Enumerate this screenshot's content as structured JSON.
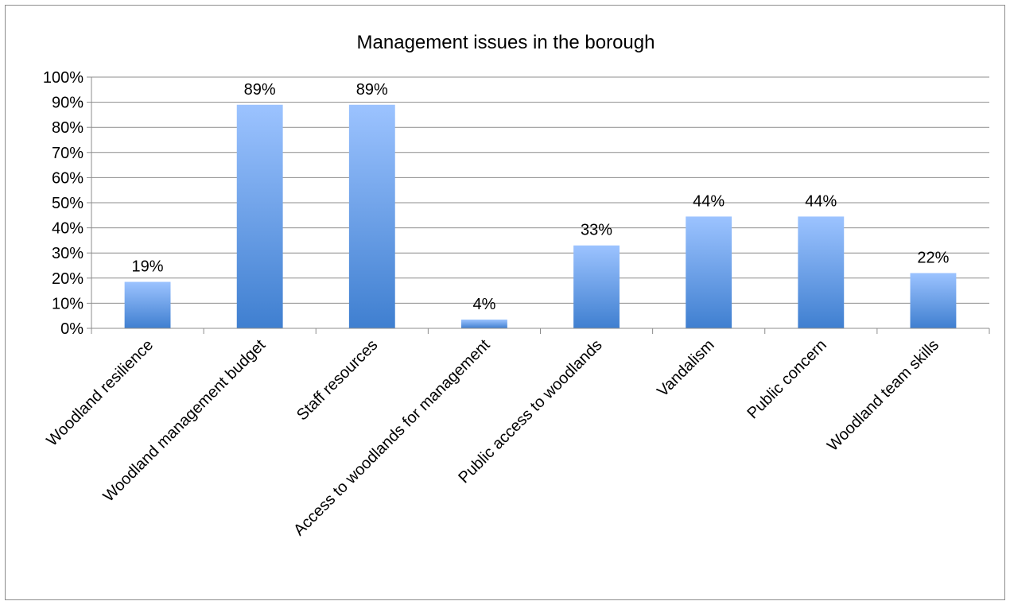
{
  "chart_data": {
    "type": "bar",
    "title": "Management issues in the borough",
    "xlabel": "",
    "ylabel": "",
    "categories": [
      "Woodland resilience",
      "Woodland management budget",
      "Staff resources",
      "Access to woodlands for management",
      "Public access to woodlands",
      "Vandalism",
      "Public concern",
      "Woodland team skills"
    ],
    "values": [
      0.185,
      0.89,
      0.89,
      0.035,
      0.33,
      0.445,
      0.445,
      0.22
    ],
    "data_labels": [
      "19%",
      "89%",
      "89%",
      "4%",
      "33%",
      "44%",
      "44%",
      "22%"
    ],
    "ylim": [
      0,
      1
    ],
    "yticks": [
      0,
      0.1,
      0.2,
      0.3,
      0.4,
      0.5,
      0.6,
      0.7,
      0.8,
      0.9,
      1.0
    ],
    "ytick_labels": [
      "0%",
      "10%",
      "20%",
      "30%",
      "40%",
      "50%",
      "60%",
      "70%",
      "80%",
      "90%",
      "100%"
    ],
    "grid": true,
    "legend": "none",
    "colors": {
      "bar_top": "#9CC3FF",
      "bar_bottom": "#3F7FD0",
      "grid": "#8c8c8c",
      "axis": "#8c8c8c"
    }
  }
}
